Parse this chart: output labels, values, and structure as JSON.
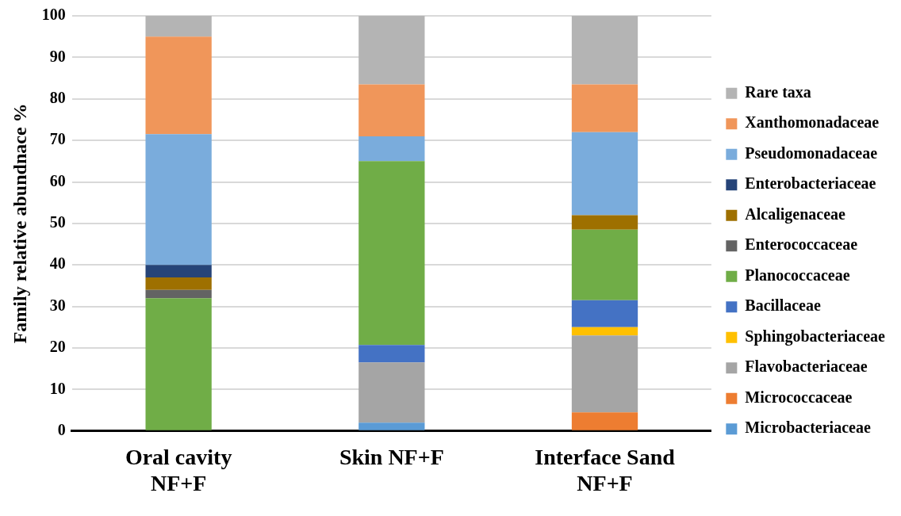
{
  "chart_data": {
    "type": "bar",
    "stacked": true,
    "ylabel": "Family relative abundnace %",
    "categories": [
      "Oral cavity NF+F",
      "Skin NF+F",
      "Interface Sand NF+F"
    ],
    "ylim": [
      0,
      100
    ],
    "yticks": [
      0,
      10,
      20,
      30,
      40,
      50,
      60,
      70,
      80,
      90,
      100
    ],
    "grid": "y",
    "legend": "right",
    "series": [
      {
        "name": "Microbacteriaceae",
        "color": "#5b9bd5",
        "values": [
          0,
          2,
          0
        ]
      },
      {
        "name": "Micrococcaceae",
        "color": "#ed7d31",
        "values": [
          0,
          0,
          4.5
        ]
      },
      {
        "name": "Flavobacteriaceae",
        "color": "#a5a5a5",
        "values": [
          0,
          14.5,
          18.5
        ]
      },
      {
        "name": "Sphingobacteriaceae",
        "color": "#ffc000",
        "values": [
          0,
          0,
          2
        ]
      },
      {
        "name": "Bacillaceae",
        "color": "#4472c4",
        "values": [
          0,
          4.2,
          6.5
        ]
      },
      {
        "name": "Planococcaceae",
        "color": "#70ad47",
        "values": [
          32,
          44.3,
          17
        ]
      },
      {
        "name": "Enterococcaceae",
        "color": "#636363",
        "values": [
          2,
          0,
          0
        ]
      },
      {
        "name": "Alcaligenaceae",
        "color": "#9e7000",
        "values": [
          3,
          0,
          3.5
        ]
      },
      {
        "name": "Enterobacteriaceae",
        "color": "#264478",
        "values": [
          3,
          0,
          0
        ]
      },
      {
        "name": "Pseudomonadaceae",
        "color": "#7aacdc",
        "values": [
          31.5,
          6,
          20
        ]
      },
      {
        "name": "Xanthomonadaceae",
        "color": "#f0965a",
        "values": [
          23.5,
          12.5,
          11.5
        ]
      },
      {
        "name": "Rare taxa",
        "color": "#b4b4b4",
        "values": [
          5,
          16.5,
          16.5
        ]
      }
    ]
  }
}
